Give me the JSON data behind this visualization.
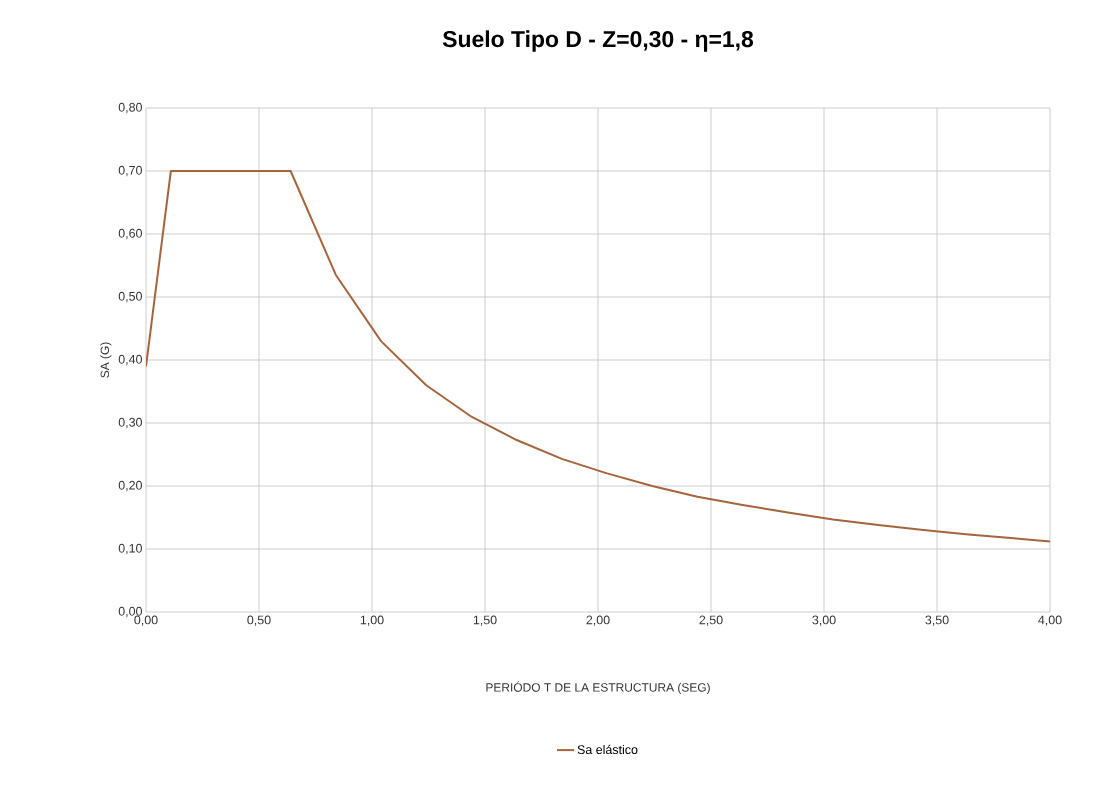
{
  "chart_data": {
    "type": "line",
    "title": "Suelo Tipo D - Z=0,30 - η=1,8",
    "xlabel": "PERIÓDO T DE LA ESTRUCTURA (SEG)",
    "ylabel": "SA (G)",
    "x": [
      0,
      0.11,
      0.64,
      0.84,
      1.04,
      1.24,
      1.44,
      1.64,
      1.84,
      2.04,
      2.24,
      2.44,
      2.64,
      2.84,
      3.04,
      3.24,
      3.44,
      3.64,
      3.84,
      4.0
    ],
    "series": [
      {
        "name": "Sa elástico",
        "color": "#a5643c",
        "values": [
          0.39,
          0.7,
          0.7,
          0.535,
          0.43,
          0.36,
          0.31,
          0.273,
          0.243,
          0.22,
          0.2,
          0.183,
          0.17,
          0.158,
          0.147,
          0.138,
          0.13,
          0.123,
          0.117,
          0.112
        ]
      }
    ],
    "xlim": [
      0,
      4
    ],
    "ylim": [
      0,
      0.8
    ],
    "xticks": [
      {
        "value": 0,
        "label": "0,00"
      },
      {
        "value": 0.5,
        "label": "0,50"
      },
      {
        "value": 1,
        "label": "1,00"
      },
      {
        "value": 1.5,
        "label": "1,50"
      },
      {
        "value": 2,
        "label": "2,00"
      },
      {
        "value": 2.5,
        "label": "2,50"
      },
      {
        "value": 3,
        "label": "3,00"
      },
      {
        "value": 3.5,
        "label": "3,50"
      },
      {
        "value": 4,
        "label": "4,00"
      }
    ],
    "yticks": [
      {
        "value": 0,
        "label": "0,00"
      },
      {
        "value": 0.1,
        "label": "0,10"
      },
      {
        "value": 0.2,
        "label": "0,20"
      },
      {
        "value": 0.3,
        "label": "0,30"
      },
      {
        "value": 0.4,
        "label": "0,40"
      },
      {
        "value": 0.5,
        "label": "0,50"
      },
      {
        "value": 0.6,
        "label": "0,60"
      },
      {
        "value": 0.7,
        "label": "0,70"
      },
      {
        "value": 0.8,
        "label": "0,80"
      }
    ],
    "grid": true,
    "legend": "bottom",
    "marker": "none",
    "line_style": "solid"
  }
}
